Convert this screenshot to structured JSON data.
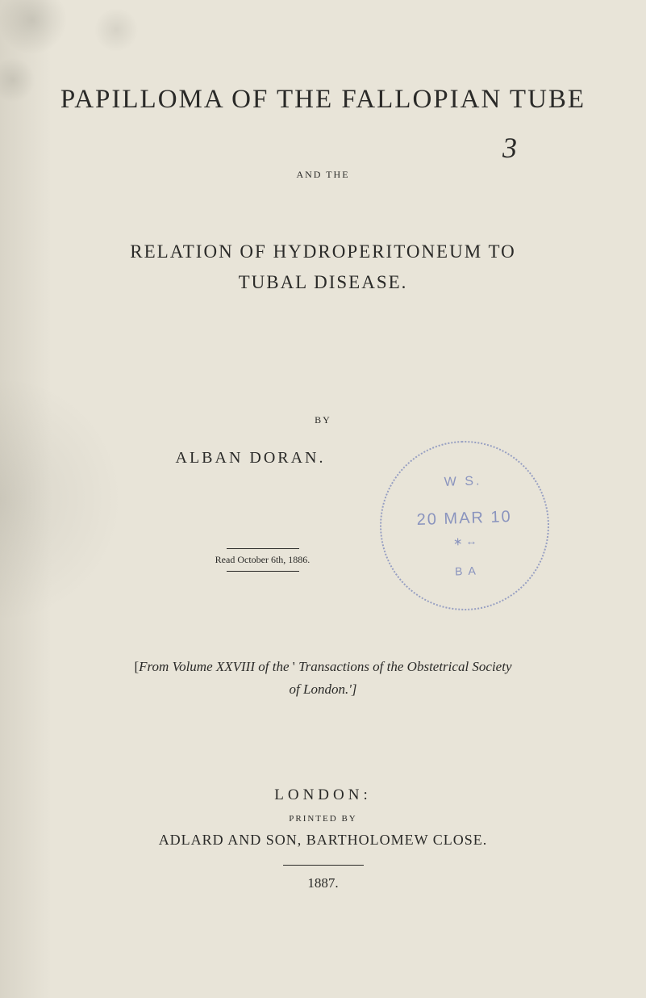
{
  "background_color": "#e8e4d8",
  "text_color": "#2a2a28",
  "stamp_color": "#6272b4",
  "main_title": "PAPILLOMA OF THE FALLOPIAN TUBE",
  "handwritten_number": "3",
  "and_the": "AND THE",
  "relation_line1": "RELATION OF HYDROPERITONEUM TO",
  "relation_line2": "TUBAL DISEASE.",
  "by_label": "BY",
  "author": "ALBAN DORAN.",
  "read_date": "Read October 6th, 1886.",
  "stamp": {
    "top_text": "W S.",
    "middle_text": "20 MAR 10",
    "bottom_text": "B A"
  },
  "citation_line1_prefix": "[",
  "citation_line1_italic1": "From Volume XXVIII of the",
  "citation_line1_quote": " ' ",
  "citation_line1_italic2": "Transactions of the Obstetrical Society",
  "citation_line2": "of London.']",
  "london": "LONDON:",
  "printed_by": "PRINTED BY",
  "publisher": "ADLARD AND SON, BARTHOLOMEW CLOSE.",
  "year": "1887.",
  "typography": {
    "main_title_size": 33,
    "subtitle_size": 23,
    "author_size": 20,
    "body_size": 17,
    "small_caps_size": 12
  }
}
